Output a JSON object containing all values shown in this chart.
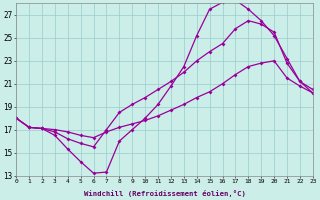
{
  "xlabel": "Windchill (Refroidissement éolien,°C)",
  "xlim": [
    0,
    23
  ],
  "ylim": [
    13,
    28
  ],
  "yticks": [
    13,
    15,
    17,
    19,
    21,
    23,
    25,
    27
  ],
  "xticks": [
    0,
    1,
    2,
    3,
    4,
    5,
    6,
    7,
    8,
    9,
    10,
    11,
    12,
    13,
    14,
    15,
    16,
    17,
    18,
    19,
    20,
    21,
    22,
    23
  ],
  "background_color": "#cceee8",
  "grid_color": "#99cccc",
  "line_color": "#990099",
  "line1_x": [
    0,
    1,
    2,
    3,
    4,
    5,
    6,
    7,
    8,
    9,
    10,
    11,
    12,
    13,
    14,
    15,
    16,
    17,
    18,
    19,
    20,
    21,
    22,
    23
  ],
  "line1_y": [
    18.0,
    17.2,
    17.1,
    16.5,
    15.3,
    14.2,
    13.2,
    13.3,
    16.0,
    17.0,
    18.0,
    19.2,
    20.8,
    22.5,
    25.2,
    27.5,
    28.1,
    28.3,
    27.5,
    26.5,
    25.2,
    23.2,
    21.2,
    20.5
  ],
  "line2_x": [
    0,
    1,
    2,
    3,
    4,
    5,
    6,
    7,
    8,
    9,
    10,
    11,
    12,
    13,
    14,
    15,
    16,
    17,
    18,
    19,
    20,
    21,
    22,
    23
  ],
  "line2_y": [
    18.0,
    17.2,
    17.1,
    16.8,
    16.2,
    15.8,
    15.5,
    17.0,
    18.5,
    19.2,
    19.8,
    20.5,
    21.2,
    22.0,
    23.0,
    23.8,
    24.5,
    25.8,
    26.5,
    26.2,
    25.5,
    22.8,
    21.2,
    20.2
  ],
  "line3_x": [
    0,
    1,
    2,
    3,
    4,
    5,
    6,
    7,
    8,
    9,
    10,
    11,
    12,
    13,
    14,
    15,
    16,
    17,
    18,
    19,
    20,
    21,
    22,
    23
  ],
  "line3_y": [
    18.0,
    17.2,
    17.1,
    17.0,
    16.8,
    16.5,
    16.3,
    16.8,
    17.2,
    17.5,
    17.8,
    18.2,
    18.7,
    19.2,
    19.8,
    20.3,
    21.0,
    21.8,
    22.5,
    22.8,
    23.0,
    21.5,
    20.8,
    20.2
  ]
}
